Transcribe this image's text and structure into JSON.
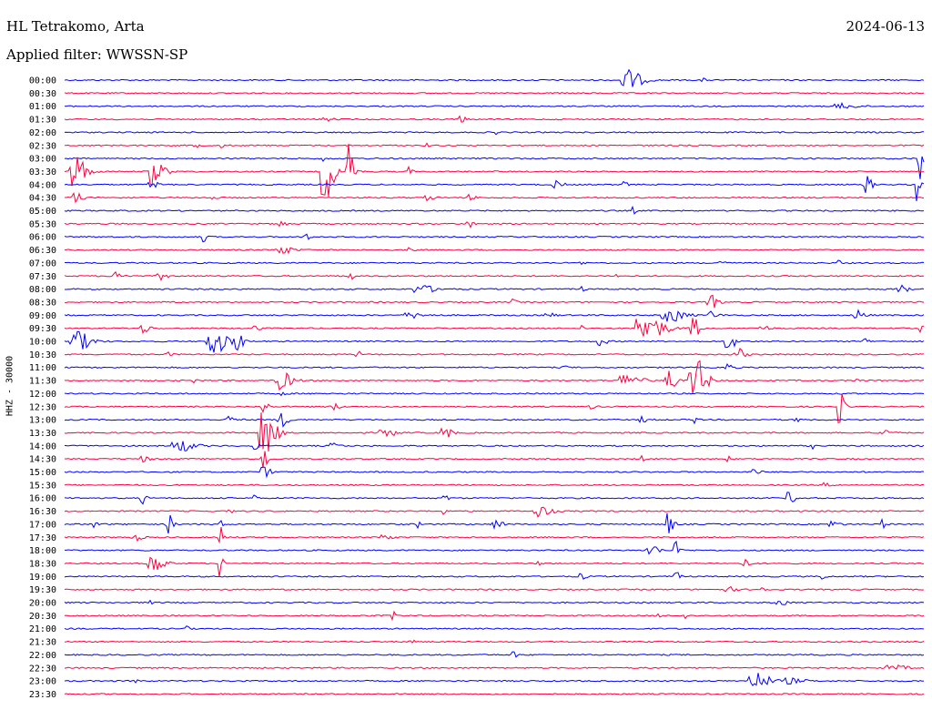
{
  "header": {
    "station": "HL Tetrakomo, Arta",
    "date": "2024-06-13",
    "filter": "Applied filter: WWSSN-SP"
  },
  "chart_data": {
    "type": "line",
    "title": "HL Tetrakomo, Arta",
    "subtitle": "Applied filter: WWSSN-SP",
    "date": "2024-06-13",
    "ylabel": "HHZ - 30000",
    "xlabel": "",
    "grid": false,
    "colors": [
      "#0000ff",
      "#ff0040"
    ],
    "traces": [
      {
        "label": "00:00",
        "bursts": [
          [
            0.65,
            13,
            0.02
          ],
          [
            0.74,
            3,
            0.004
          ]
        ]
      },
      {
        "label": "00:30",
        "bursts": [
          [
            0.8,
            2,
            0.003
          ]
        ]
      },
      {
        "label": "01:00",
        "bursts": [
          [
            0.9,
            3,
            0.02
          ]
        ]
      },
      {
        "label": "01:30",
        "bursts": [
          [
            0.3,
            3,
            0.01
          ],
          [
            0.46,
            5,
            0.006
          ]
        ]
      },
      {
        "label": "02:00",
        "bursts": [
          [
            0.5,
            2,
            0.005
          ]
        ]
      },
      {
        "label": "02:30",
        "bursts": [
          [
            0.15,
            3,
            0.006
          ],
          [
            0.18,
            3,
            0.006
          ],
          [
            0.42,
            2,
            0.004
          ]
        ]
      },
      {
        "label": "03:00",
        "bursts": [
          [
            0.3,
            4,
            0.005
          ],
          [
            0.995,
            40,
            0.01
          ]
        ]
      },
      {
        "label": "03:30",
        "bursts": [
          [
            0.01,
            20,
            0.015
          ],
          [
            0.1,
            16,
            0.015
          ],
          [
            0.3,
            40,
            0.012
          ],
          [
            0.33,
            30,
            0.008
          ],
          [
            0.4,
            5,
            0.004
          ]
        ]
      },
      {
        "label": "04:00",
        "bursts": [
          [
            0.1,
            4,
            0.01
          ],
          [
            0.57,
            4,
            0.01
          ],
          [
            0.65,
            3,
            0.005
          ],
          [
            0.93,
            12,
            0.008
          ],
          [
            0.99,
            20,
            0.005
          ]
        ]
      },
      {
        "label": "04:30",
        "bursts": [
          [
            0.01,
            6,
            0.01
          ],
          [
            0.17,
            3,
            0.006
          ],
          [
            0.42,
            3,
            0.01
          ],
          [
            0.47,
            3,
            0.008
          ]
        ]
      },
      {
        "label": "05:00",
        "bursts": [
          [
            0.27,
            3,
            0.004
          ],
          [
            0.66,
            4,
            0.004
          ]
        ]
      },
      {
        "label": "05:30",
        "bursts": [
          [
            0.25,
            3,
            0.01
          ],
          [
            0.47,
            4,
            0.008
          ]
        ]
      },
      {
        "label": "06:00",
        "bursts": [
          [
            0.16,
            6,
            0.005
          ],
          [
            0.28,
            4,
            0.005
          ]
        ]
      },
      {
        "label": "06:30",
        "bursts": [
          [
            0.25,
            5,
            0.015
          ],
          [
            0.4,
            5,
            0.005
          ]
        ]
      },
      {
        "label": "07:00",
        "bursts": [
          [
            0.6,
            3,
            0.004
          ],
          [
            0.76,
            3,
            0.01
          ],
          [
            0.9,
            3,
            0.004
          ]
        ]
      },
      {
        "label": "07:30",
        "bursts": [
          [
            0.06,
            6,
            0.01
          ],
          [
            0.11,
            4,
            0.01
          ],
          [
            0.33,
            6,
            0.005
          ],
          [
            0.64,
            3,
            0.003
          ]
        ]
      },
      {
        "label": "08:00",
        "bursts": [
          [
            0.41,
            5,
            0.02
          ],
          [
            0.6,
            3,
            0.005
          ],
          [
            0.97,
            5,
            0.01
          ]
        ]
      },
      {
        "label": "08:30",
        "bursts": [
          [
            0.52,
            3,
            0.005
          ],
          [
            0.75,
            8,
            0.01
          ]
        ]
      },
      {
        "label": "09:00",
        "bursts": [
          [
            0.4,
            3,
            0.02
          ],
          [
            0.56,
            3,
            0.01
          ],
          [
            0.7,
            8,
            0.02
          ],
          [
            0.75,
            4,
            0.01
          ],
          [
            0.92,
            6,
            0.01
          ]
        ]
      },
      {
        "label": "09:30",
        "bursts": [
          [
            0.09,
            5,
            0.01
          ],
          [
            0.22,
            5,
            0.006
          ],
          [
            0.6,
            4,
            0.004
          ],
          [
            0.67,
            18,
            0.025
          ],
          [
            0.73,
            14,
            0.008
          ],
          [
            0.81,
            3,
            0.01
          ],
          [
            0.995,
            5,
            0.004
          ]
        ]
      },
      {
        "label": "10:00",
        "bursts": [
          [
            0.01,
            12,
            0.02
          ],
          [
            0.17,
            14,
            0.02
          ],
          [
            0.2,
            30,
            0.006
          ],
          [
            0.62,
            5,
            0.01
          ],
          [
            0.77,
            10,
            0.01
          ],
          [
            0.93,
            4,
            0.005
          ]
        ]
      },
      {
        "label": "10:30",
        "bursts": [
          [
            0.12,
            3,
            0.005
          ],
          [
            0.34,
            4,
            0.005
          ],
          [
            0.78,
            8,
            0.01
          ]
        ]
      },
      {
        "label": "11:00",
        "bursts": [
          [
            0.58,
            3,
            0.004
          ],
          [
            0.77,
            4,
            0.008
          ]
        ]
      },
      {
        "label": "11:30",
        "bursts": [
          [
            0.15,
            6,
            0.005
          ],
          [
            0.25,
            10,
            0.015
          ],
          [
            0.65,
            8,
            0.02
          ],
          [
            0.7,
            25,
            0.008
          ],
          [
            0.73,
            30,
            0.015
          ],
          [
            0.92,
            5,
            0.005
          ]
        ]
      },
      {
        "label": "12:00",
        "bursts": [
          [
            0.25,
            3,
            0.006
          ]
        ]
      },
      {
        "label": "12:30",
        "bursts": [
          [
            0.23,
            10,
            0.006
          ],
          [
            0.31,
            4,
            0.01
          ],
          [
            0.61,
            3,
            0.006
          ],
          [
            0.9,
            20,
            0.006
          ]
        ]
      },
      {
        "label": "13:00",
        "bursts": [
          [
            0.19,
            4,
            0.01
          ],
          [
            0.25,
            8,
            0.01
          ],
          [
            0.67,
            3,
            0.01
          ],
          [
            0.73,
            14,
            0.004
          ],
          [
            0.85,
            3,
            0.005
          ]
        ]
      },
      {
        "label": "13:30",
        "bursts": [
          [
            0.23,
            30,
            0.015
          ],
          [
            0.37,
            5,
            0.015
          ],
          [
            0.44,
            8,
            0.01
          ],
          [
            0.95,
            6,
            0.01
          ]
        ]
      },
      {
        "label": "14:00",
        "bursts": [
          [
            0.13,
            7,
            0.02
          ],
          [
            0.22,
            5,
            0.006
          ],
          [
            0.31,
            3,
            0.01
          ],
          [
            0.87,
            3,
            0.003
          ]
        ]
      },
      {
        "label": "14:30",
        "bursts": [
          [
            0.09,
            3,
            0.01
          ],
          [
            0.23,
            20,
            0.005
          ],
          [
            0.67,
            4,
            0.004
          ],
          [
            0.77,
            3,
            0.005
          ]
        ]
      },
      {
        "label": "15:00",
        "bursts": [
          [
            0.23,
            6,
            0.01
          ],
          [
            0.8,
            4,
            0.008
          ]
        ]
      },
      {
        "label": "15:30",
        "bursts": [
          [
            0.88,
            2,
            0.01
          ]
        ]
      },
      {
        "label": "16:00",
        "bursts": [
          [
            0.09,
            6,
            0.005
          ],
          [
            0.22,
            3,
            0.005
          ],
          [
            0.44,
            4,
            0.006
          ],
          [
            0.84,
            6,
            0.01
          ]
        ]
      },
      {
        "label": "16:30",
        "bursts": [
          [
            0.19,
            3,
            0.005
          ],
          [
            0.44,
            3,
            0.005
          ],
          [
            0.55,
            7,
            0.015
          ]
        ]
      },
      {
        "label": "17:00",
        "bursts": [
          [
            0.03,
            4,
            0.008
          ],
          [
            0.12,
            12,
            0.006
          ],
          [
            0.18,
            10,
            0.003
          ],
          [
            0.41,
            4,
            0.005
          ],
          [
            0.5,
            5,
            0.01
          ],
          [
            0.7,
            12,
            0.008
          ],
          [
            0.89,
            4,
            0.01
          ],
          [
            0.95,
            5,
            0.005
          ]
        ]
      },
      {
        "label": "17:30",
        "bursts": [
          [
            0.08,
            4,
            0.01
          ],
          [
            0.18,
            14,
            0.005
          ],
          [
            0.37,
            4,
            0.01
          ]
        ]
      },
      {
        "label": "18:00",
        "bursts": [
          [
            0.68,
            8,
            0.01
          ],
          [
            0.71,
            10,
            0.006
          ]
        ]
      },
      {
        "label": "18:30",
        "bursts": [
          [
            0.1,
            12,
            0.015
          ],
          [
            0.18,
            16,
            0.004
          ],
          [
            0.55,
            3,
            0.005
          ],
          [
            0.79,
            4,
            0.01
          ]
        ]
      },
      {
        "label": "19:00",
        "bursts": [
          [
            0.6,
            4,
            0.006
          ],
          [
            0.71,
            6,
            0.005
          ],
          [
            0.88,
            5,
            0.004
          ]
        ]
      },
      {
        "label": "19:30",
        "bursts": [
          [
            0.77,
            3,
            0.01
          ],
          [
            0.81,
            5,
            0.005
          ]
        ]
      },
      {
        "label": "20:00",
        "bursts": [
          [
            0.1,
            2,
            0.005
          ],
          [
            0.83,
            3,
            0.01
          ]
        ]
      },
      {
        "label": "20:30",
        "bursts": [
          [
            0.38,
            5,
            0.006
          ],
          [
            0.69,
            2,
            0.004
          ],
          [
            0.72,
            8,
            0.002
          ]
        ]
      },
      {
        "label": "21:00",
        "bursts": [
          [
            0.14,
            3,
            0.005
          ]
        ]
      },
      {
        "label": "21:30",
        "bursts": [
          [
            0.4,
            3,
            0.006
          ]
        ]
      },
      {
        "label": "22:00",
        "bursts": [
          [
            0.52,
            4,
            0.006
          ]
        ]
      },
      {
        "label": "22:30",
        "bursts": [
          [
            0.96,
            3,
            0.02
          ]
        ]
      },
      {
        "label": "23:00",
        "bursts": [
          [
            0.08,
            3,
            0.005
          ],
          [
            0.8,
            10,
            0.02
          ],
          [
            0.84,
            3,
            0.02
          ]
        ]
      },
      {
        "label": "23:30",
        "bursts": []
      }
    ]
  }
}
